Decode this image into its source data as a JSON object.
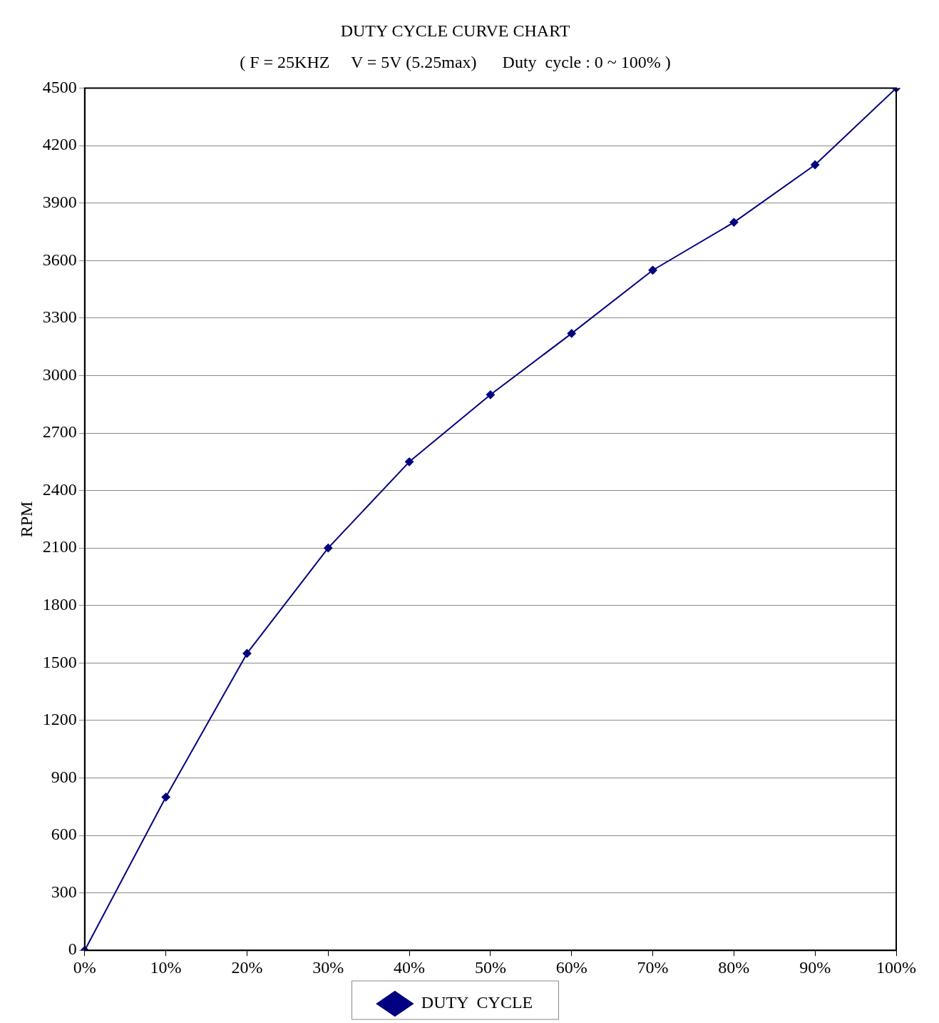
{
  "chart_data": {
    "type": "line",
    "title": "DUTY CYCLE CURVE CHART",
    "subtitle": "( F = 25KHZ     V = 5V (5.25max)      Duty  cycle : 0 ~ 100% )",
    "ylabel": "RPM",
    "categories": [
      "0%",
      "10%",
      "20%",
      "30%",
      "40%",
      "50%",
      "60%",
      "70%",
      "80%",
      "90%",
      "100%"
    ],
    "series": [
      {
        "name": "DUTY  CYCLE",
        "color": "#000080",
        "values": [
          0,
          800,
          1550,
          2100,
          2550,
          2900,
          3220,
          3550,
          3800,
          4100,
          4500
        ]
      }
    ],
    "ylim": [
      0,
      4500
    ],
    "yticks": [
      0,
      300,
      600,
      900,
      1200,
      1500,
      1800,
      2100,
      2400,
      2700,
      3000,
      3300,
      3600,
      3900,
      4200,
      4500
    ],
    "grid": "y",
    "legend": "bottom",
    "marker": "diamond",
    "line_style": "solid"
  }
}
